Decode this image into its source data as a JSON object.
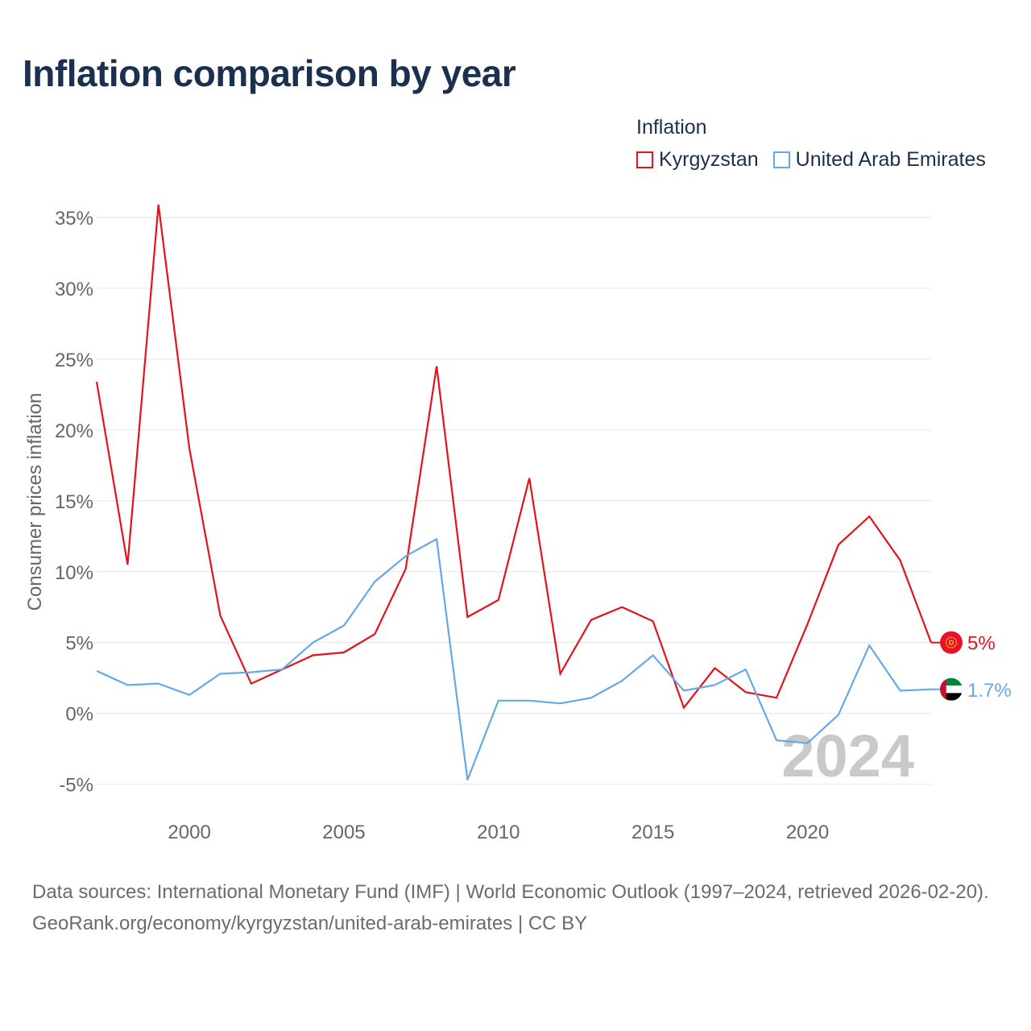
{
  "title": "Inflation comparison by year",
  "legend": {
    "title": "Inflation",
    "items": [
      {
        "label": "Kyrgyzstan",
        "color": "#e3121b"
      },
      {
        "label": "United Arab Emirates",
        "color": "#66a8e6"
      }
    ]
  },
  "chart_data": {
    "type": "line",
    "ylabel": "Consumer prices inflation",
    "xlabel": "",
    "xlim": [
      1997,
      2024
    ],
    "ylim": [
      -6.5,
      37.5
    ],
    "yticks": [
      35,
      30,
      25,
      20,
      15,
      10,
      5,
      0,
      -5
    ],
    "ytick_labels": [
      "35%",
      "30%",
      "25%",
      "20%",
      "15%",
      "10%",
      "5%",
      "0%",
      "-5%"
    ],
    "xticks": [
      2000,
      2005,
      2010,
      2015,
      2020
    ],
    "xtick_labels": [
      "2000",
      "2005",
      "2010",
      "2015",
      "2020"
    ],
    "grid": true,
    "watermark_year": "2024",
    "x": [
      1997,
      1998,
      1999,
      2000,
      2001,
      2002,
      2003,
      2004,
      2005,
      2006,
      2007,
      2008,
      2009,
      2010,
      2011,
      2012,
      2013,
      2014,
      2015,
      2016,
      2017,
      2018,
      2019,
      2020,
      2021,
      2022,
      2023,
      2024
    ],
    "series": [
      {
        "name": "Kyrgyzstan",
        "color": "#e3121b",
        "end_label": "5%",
        "values": [
          23.4,
          10.5,
          35.9,
          18.7,
          6.9,
          2.1,
          3.1,
          4.1,
          4.3,
          5.6,
          10.2,
          24.5,
          6.8,
          8.0,
          16.6,
          2.8,
          6.6,
          7.5,
          6.5,
          0.4,
          3.2,
          1.5,
          1.1,
          6.3,
          11.9,
          13.9,
          10.8,
          5.0
        ]
      },
      {
        "name": "United Arab Emirates",
        "color": "#66a8e6",
        "end_label": "1.7%",
        "values": [
          3.0,
          2.0,
          2.1,
          1.3,
          2.8,
          2.9,
          3.1,
          5.0,
          6.2,
          9.3,
          11.1,
          12.3,
          -4.7,
          0.9,
          0.9,
          0.7,
          1.1,
          2.3,
          4.1,
          1.6,
          2.0,
          3.1,
          -1.9,
          -2.1,
          -0.1,
          4.8,
          1.6,
          1.7
        ]
      }
    ]
  },
  "footer": {
    "line1": "Data sources: International Monetary Fund (IMF) | World Economic Outlook (1997–2024, retrieved 2026-02-20).",
    "line2": "GeoRank.org/economy/kyrgyzstan/united-arab-emirates | CC BY"
  }
}
